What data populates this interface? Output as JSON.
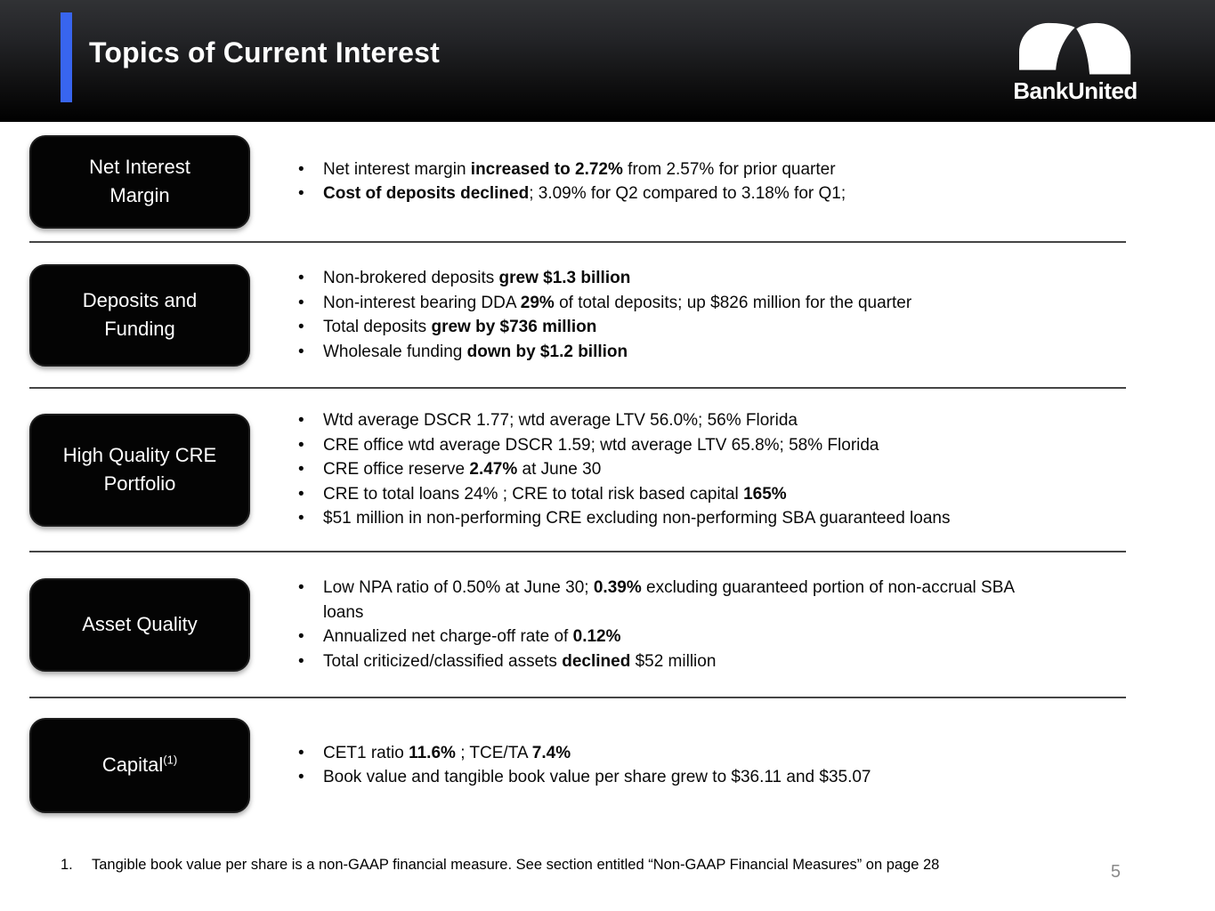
{
  "header": {
    "title": "Topics of Current Interest",
    "logo_text": "BankUnited"
  },
  "colors": {
    "accent_blue": "#3865ef",
    "topic_box_black": "#040404",
    "divider_gray": "#454545",
    "page_number_gray": "#8a8a8a"
  },
  "sections": [
    {
      "label_lines": [
        "Net Interest",
        "Margin"
      ],
      "sup": "",
      "bullets": [
        {
          "segments": [
            {
              "t": "Net interest margin "
            },
            {
              "t": "increased to 2.72%",
              "b": true
            },
            {
              "t": " from 2.57% for prior quarter"
            }
          ]
        },
        {
          "segments": [
            {
              "t": "Cost of deposits declined",
              "b": true
            },
            {
              "t": "; 3.09% for Q2 compared to 3.18% for Q1;"
            }
          ]
        }
      ]
    },
    {
      "label_lines": [
        "Deposits and",
        "Funding"
      ],
      "sup": "",
      "bullets": [
        {
          "segments": [
            {
              "t": "Non-brokered deposits "
            },
            {
              "t": "grew $1.3 billion",
              "b": true
            }
          ]
        },
        {
          "segments": [
            {
              "t": "Non-interest bearing DDA "
            },
            {
              "t": "29%",
              "b": true
            },
            {
              "t": " of total deposits; up $826 million for the quarter"
            }
          ]
        },
        {
          "segments": [
            {
              "t": "Total deposits "
            },
            {
              "t": "grew by $736 million",
              "b": true
            }
          ]
        },
        {
          "segments": [
            {
              "t": "Wholesale funding "
            },
            {
              "t": "down by $1.2 billion",
              "b": true
            }
          ]
        }
      ]
    },
    {
      "label_lines": [
        "High Quality CRE",
        "Portfolio"
      ],
      "sup": "",
      "bullets": [
        {
          "segments": [
            {
              "t": "Wtd average DSCR 1.77; wtd average LTV 56.0%; 56% Florida"
            }
          ]
        },
        {
          "segments": [
            {
              "t": "CRE office wtd average DSCR 1.59; wtd average LTV 65.8%; 58% Florida"
            }
          ]
        },
        {
          "segments": [
            {
              "t": "CRE office reserve "
            },
            {
              "t": "2.47%",
              "b": true
            },
            {
              "t": " at June 30"
            }
          ]
        },
        {
          "segments": [
            {
              "t": "CRE to total loans 24% ; CRE to total risk based capital "
            },
            {
              "t": "165%",
              "b": true
            }
          ]
        },
        {
          "segments": [
            {
              "t": "$51 million in non-performing CRE excluding non-performing SBA guaranteed loans"
            }
          ]
        }
      ]
    },
    {
      "label_lines": [
        "Asset Quality"
      ],
      "sup": "",
      "bullets": [
        {
          "segments": [
            {
              "t": "Low NPA ratio of 0.50% at June 30; "
            },
            {
              "t": "0.39%",
              "b": true
            },
            {
              "t": " excluding guaranteed portion of non-accrual SBA"
            },
            {
              "t": "loans",
              "nl": true
            }
          ]
        },
        {
          "segments": [
            {
              "t": "Annualized net charge-off rate of "
            },
            {
              "t": "0.12%",
              "b": true
            }
          ]
        },
        {
          "segments": [
            {
              "t": "Total criticized/classified assets "
            },
            {
              "t": "declined",
              "b": true
            },
            {
              "t": " $52 million"
            }
          ]
        }
      ]
    },
    {
      "label_lines": [
        "Capital"
      ],
      "sup": "(1)",
      "bullets": [
        {
          "segments": [
            {
              "t": "CET1 ratio "
            },
            {
              "t": "11.6%",
              "b": true
            },
            {
              "t": " ; TCE/TA "
            },
            {
              "t": "7.4%",
              "b": true
            }
          ]
        },
        {
          "segments": [
            {
              "t": "Book value and tangible book value per share grew to $36.11 and $35.07"
            }
          ]
        }
      ]
    }
  ],
  "footnote": {
    "number": "1.",
    "text": "Tangible book value per share is a non-GAAP financial measure. See section entitled “Non-GAAP Financial Measures” on page 28"
  },
  "page_number": "5"
}
